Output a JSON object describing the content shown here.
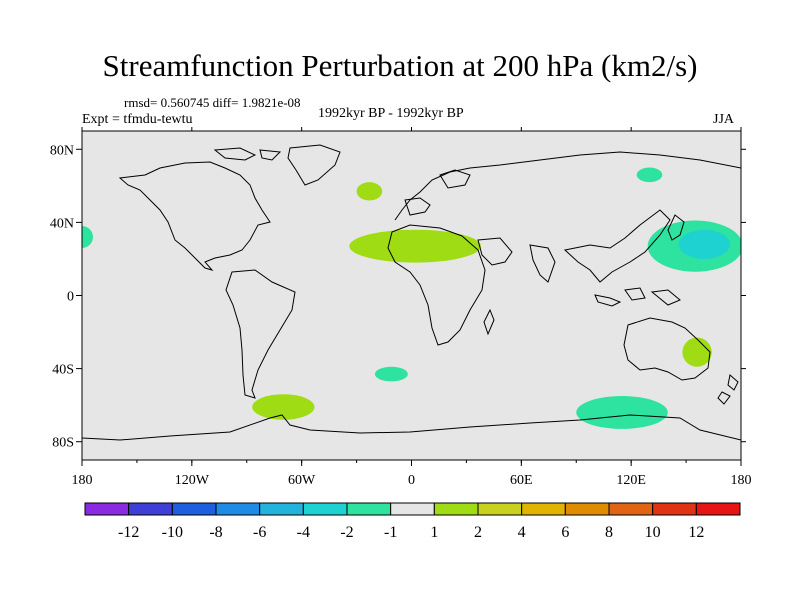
{
  "title": "Streamfunction Perturbation at 200 hPa (km2/s)",
  "stats_line": "rmsd= 0.560745 diff= 1.9821e-08",
  "experiment": "Expt = tfmdu-tewtu",
  "period": "1992kyr BP - 1992kyr BP",
  "season": "JJA",
  "chart_data": {
    "type": "filled-contour-map",
    "projection": "cylindrical-equidistant",
    "field": "Streamfunction perturbation at 200 hPa",
    "units": "km2/s",
    "background_color": "#e6e6e6",
    "xlim": [
      -180,
      180
    ],
    "ylim": [
      -90,
      90
    ],
    "x_ticks": [
      {
        "value": -180,
        "label": "180"
      },
      {
        "value": -120,
        "label": "120W"
      },
      {
        "value": -60,
        "label": "60W"
      },
      {
        "value": 0,
        "label": "0"
      },
      {
        "value": 60,
        "label": "60E"
      },
      {
        "value": 120,
        "label": "120E"
      },
      {
        "value": 180,
        "label": "180"
      }
    ],
    "y_ticks": [
      {
        "value": 80,
        "label": "80N"
      },
      {
        "value": 40,
        "label": "40N"
      },
      {
        "value": 0,
        "label": "0"
      },
      {
        "value": -40,
        "label": "40S"
      },
      {
        "value": -80,
        "label": "80S"
      }
    ],
    "colorbar": {
      "labels": [
        "-12",
        "-10",
        "-8",
        "-6",
        "-4",
        "-2",
        "-1",
        "1",
        "2",
        "4",
        "6",
        "8",
        "10",
        "12"
      ],
      "colors": [
        "#8a2be2",
        "#3f3fd8",
        "#1e5fe0",
        "#1e8ce6",
        "#22b4dc",
        "#1fd2d2",
        "#2ee39f",
        "#e6e6e6",
        "#a0dc14",
        "#c8d21e",
        "#e0b400",
        "#e08c00",
        "#e06414",
        "#e03214",
        "#e61414"
      ]
    },
    "anomalies": [
      {
        "name": "north-atlantic-small",
        "level": "1 to 2",
        "color": "#a0dc14",
        "lon": -23,
        "lat": 57,
        "rlon": 7,
        "rlat": 5
      },
      {
        "name": "sahara-band",
        "level": "1 to 2",
        "color": "#a0dc14",
        "lon": 2,
        "lat": 27,
        "rlon": 36,
        "rlat": 9
      },
      {
        "name": "central-asia",
        "level": "-1 to -2",
        "color": "#2ee39f",
        "lon": 130,
        "lat": 66,
        "rlon": 7,
        "rlat": 4
      },
      {
        "name": "date-line-north-west",
        "level": "-1 to -2",
        "color": "#2ee39f",
        "lon": -180,
        "lat": 32,
        "rlon": 6,
        "rlat": 6
      },
      {
        "name": "west-pacific",
        "level": "-1 to -2",
        "color": "#2ee39f",
        "lon": 155,
        "lat": 27,
        "rlon": 26,
        "rlat": 14
      },
      {
        "name": "west-pacific-core",
        "level": "-2 to -4",
        "color": "#1fd2d2",
        "lon": 160,
        "lat": 28,
        "rlon": 14,
        "rlat": 8
      },
      {
        "name": "south-atlantic",
        "level": "-1 to -2",
        "color": "#2ee39f",
        "lon": -11,
        "lat": -43,
        "rlon": 9,
        "rlat": 4
      },
      {
        "name": "patagonia",
        "level": "1 to 2",
        "color": "#a0dc14",
        "lon": -70,
        "lat": -61,
        "rlon": 17,
        "rlat": 7
      },
      {
        "name": "southern-indian-ocean",
        "level": "-1 to -2",
        "color": "#2ee39f",
        "lon": 115,
        "lat": -64,
        "rlon": 25,
        "rlat": 9
      },
      {
        "name": "eastern-australia",
        "level": "1 to 2",
        "color": "#a0dc14",
        "lon": 156,
        "lat": -31,
        "rlon": 8,
        "rlat": 8
      }
    ]
  }
}
